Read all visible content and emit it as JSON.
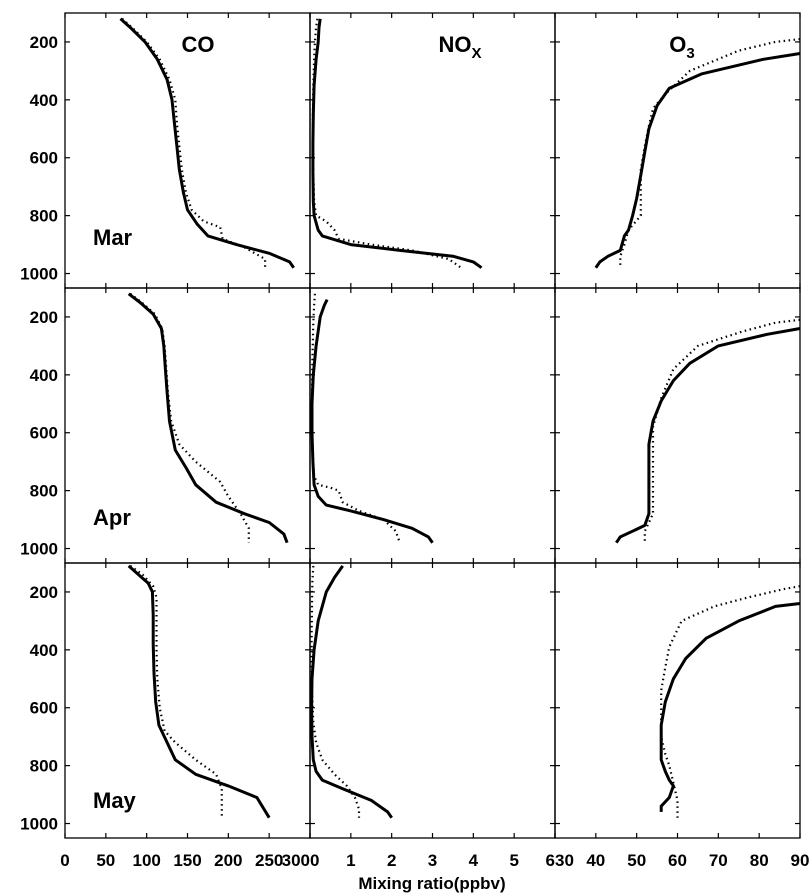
{
  "figure": {
    "xlabel": "Mixing ratio(ppbv)"
  },
  "chart_data": [
    {
      "type": "line",
      "column": "CO",
      "month": "Mar",
      "xlim": [
        0,
        300
      ],
      "ylim": [
        1050,
        100
      ],
      "series": [
        {
          "style": "solid",
          "x": [
            68,
            80,
            98,
            113,
            125,
            131,
            134,
            137,
            140,
            145,
            150,
            162,
            175,
            210,
            250,
            275,
            280
          ],
          "y": [
            120,
            150,
            200,
            260,
            330,
            400,
            480,
            560,
            640,
            720,
            780,
            830,
            870,
            900,
            930,
            960,
            980
          ]
        },
        {
          "style": "dotted",
          "x": [
            70,
            82,
            100,
            116,
            128,
            135,
            137,
            140,
            143,
            148,
            155,
            170,
            190,
            193,
            220,
            245,
            245
          ],
          "y": [
            120,
            150,
            200,
            260,
            330,
            400,
            480,
            560,
            640,
            720,
            780,
            820,
            840,
            880,
            910,
            950,
            980
          ]
        }
      ]
    },
    {
      "type": "line",
      "column": "NOx",
      "month": "Mar",
      "xlim": [
        0,
        6
      ],
      "ylim": [
        1050,
        100
      ],
      "series": [
        {
          "style": "solid",
          "x": [
            0.25,
            0.22,
            0.2,
            0.15,
            0.1,
            0.08,
            0.07,
            0.07,
            0.08,
            0.1,
            0.2,
            0.3,
            1.0,
            2.2,
            3.5,
            4.0,
            4.2
          ],
          "y": [
            120,
            150,
            200,
            260,
            350,
            450,
            550,
            650,
            750,
            800,
            850,
            870,
            900,
            920,
            940,
            960,
            980
          ]
        },
        {
          "style": "dotted",
          "x": [
            0.18,
            0.15,
            0.12,
            0.1,
            0.08,
            0.07,
            0.07,
            0.08,
            0.1,
            0.15,
            0.4,
            0.6,
            0.7,
            1.5,
            2.5,
            3.4,
            3.7
          ],
          "y": [
            120,
            150,
            200,
            260,
            350,
            450,
            550,
            650,
            750,
            800,
            820,
            850,
            880,
            900,
            920,
            950,
            980
          ]
        }
      ]
    },
    {
      "type": "line",
      "column": "O3",
      "month": "Mar",
      "xlim": [
        30,
        90
      ],
      "ylim": [
        1050,
        100
      ],
      "series": [
        {
          "style": "solid",
          "x": [
            90,
            81,
            66,
            58,
            55,
            53,
            52,
            51,
            50,
            49,
            48,
            47,
            46,
            43,
            41,
            40
          ],
          "y": [
            240,
            260,
            310,
            360,
            420,
            500,
            580,
            660,
            740,
            800,
            850,
            870,
            920,
            940,
            960,
            980
          ]
        },
        {
          "style": "dotted",
          "x": [
            90,
            84,
            75,
            63,
            57,
            54,
            53,
            52,
            51,
            51,
            51,
            48,
            47,
            46,
            46
          ],
          "y": [
            190,
            200,
            230,
            300,
            380,
            430,
            490,
            560,
            640,
            740,
            800,
            850,
            900,
            940,
            980
          ]
        }
      ]
    },
    {
      "type": "line",
      "column": "CO",
      "month": "Apr",
      "xlim": [
        0,
        300
      ],
      "ylim": [
        1050,
        100
      ],
      "series": [
        {
          "style": "solid",
          "x": [
            78,
            92,
            108,
            118,
            121,
            123,
            125,
            128,
            135,
            148,
            160,
            185,
            220,
            250,
            268,
            272
          ],
          "y": [
            120,
            150,
            190,
            240,
            300,
            380,
            460,
            560,
            660,
            720,
            780,
            840,
            880,
            910,
            950,
            980
          ]
        },
        {
          "style": "dotted",
          "x": [
            80,
            94,
            110,
            119,
            122,
            124,
            126,
            130,
            140,
            160,
            190,
            200,
            215,
            225,
            225
          ],
          "y": [
            120,
            150,
            190,
            240,
            300,
            380,
            460,
            560,
            640,
            700,
            770,
            820,
            880,
            930,
            980
          ]
        }
      ]
    },
    {
      "type": "line",
      "column": "NOx",
      "month": "Apr",
      "xlim": [
        0,
        6
      ],
      "ylim": [
        1050,
        100
      ],
      "series": [
        {
          "style": "solid",
          "x": [
            0.42,
            0.35,
            0.25,
            0.15,
            0.08,
            0.05,
            0.05,
            0.07,
            0.1,
            0.2,
            0.4,
            1.0,
            1.8,
            2.5,
            2.9,
            3.0
          ],
          "y": [
            140,
            160,
            200,
            300,
            400,
            500,
            600,
            700,
            780,
            820,
            850,
            870,
            900,
            930,
            960,
            980
          ]
        },
        {
          "style": "dotted",
          "x": [
            0.12,
            0.1,
            0.08,
            0.06,
            0.05,
            0.05,
            0.06,
            0.1,
            0.2,
            0.5,
            0.7,
            0.8,
            1.2,
            1.8,
            2.1,
            2.2
          ],
          "y": [
            120,
            160,
            220,
            350,
            450,
            550,
            650,
            750,
            780,
            790,
            800,
            840,
            870,
            900,
            940,
            980
          ]
        }
      ]
    },
    {
      "type": "line",
      "column": "O3",
      "month": "Apr",
      "xlim": [
        30,
        90
      ],
      "ylim": [
        1050,
        100
      ],
      "series": [
        {
          "style": "solid",
          "x": [
            90,
            82,
            70,
            63,
            59,
            56,
            54,
            53,
            53,
            53,
            53,
            53,
            52,
            49,
            46,
            45
          ],
          "y": [
            240,
            260,
            300,
            360,
            420,
            490,
            560,
            640,
            720,
            800,
            850,
            880,
            920,
            940,
            960,
            980
          ]
        },
        {
          "style": "dotted",
          "x": [
            90,
            84,
            76,
            65,
            59,
            56,
            54,
            54,
            54,
            54,
            54,
            53,
            52,
            52,
            52
          ],
          "y": [
            210,
            220,
            250,
            300,
            380,
            480,
            580,
            680,
            760,
            820,
            880,
            910,
            940,
            960,
            980
          ]
        }
      ]
    },
    {
      "type": "line",
      "column": "CO",
      "month": "May",
      "xlim": [
        0,
        300
      ],
      "ylim": [
        1050,
        100
      ],
      "series": [
        {
          "style": "solid",
          "x": [
            78,
            90,
            102,
            107,
            108,
            108,
            109,
            111,
            115,
            125,
            135,
            160,
            200,
            235,
            250
          ],
          "y": [
            110,
            140,
            170,
            200,
            280,
            380,
            480,
            580,
            660,
            720,
            780,
            830,
            870,
            910,
            980
          ]
        },
        {
          "style": "dotted",
          "x": [
            80,
            95,
            108,
            112,
            112,
            112,
            113,
            116,
            122,
            135,
            160,
            185,
            192,
            192
          ],
          "y": [
            110,
            140,
            180,
            220,
            300,
            400,
            500,
            600,
            680,
            720,
            780,
            830,
            880,
            980
          ]
        }
      ]
    },
    {
      "type": "line",
      "column": "NOx",
      "month": "May",
      "xlim": [
        0,
        6
      ],
      "ylim": [
        1050,
        100
      ],
      "series": [
        {
          "style": "solid",
          "x": [
            0.8,
            0.6,
            0.4,
            0.2,
            0.1,
            0.05,
            0.04,
            0.05,
            0.08,
            0.15,
            0.3,
            0.8,
            1.5,
            1.9,
            2.0
          ],
          "y": [
            110,
            150,
            200,
            300,
            400,
            500,
            600,
            700,
            780,
            820,
            850,
            880,
            920,
            960,
            980
          ]
        },
        {
          "style": "dotted",
          "x": [
            0.08,
            0.06,
            0.05,
            0.04,
            0.04,
            0.05,
            0.08,
            0.15,
            0.3,
            0.6,
            0.9,
            1.1,
            1.2,
            1.2
          ],
          "y": [
            110,
            160,
            250,
            350,
            450,
            550,
            650,
            720,
            780,
            830,
            870,
            910,
            950,
            980
          ]
        }
      ]
    },
    {
      "type": "line",
      "column": "O3",
      "month": "May",
      "xlim": [
        30,
        90
      ],
      "ylim": [
        1050,
        100
      ],
      "series": [
        {
          "style": "solid",
          "x": [
            90,
            84,
            75,
            67,
            62,
            59,
            57,
            56,
            56,
            56,
            57,
            58,
            59,
            58,
            56,
            56
          ],
          "y": [
            240,
            250,
            300,
            360,
            430,
            500,
            580,
            660,
            720,
            780,
            820,
            850,
            870,
            910,
            940,
            960
          ]
        },
        {
          "style": "dotted",
          "x": [
            90,
            86,
            77,
            69,
            61,
            58,
            57,
            56,
            56,
            56,
            57,
            58,
            59,
            60,
            60
          ],
          "y": [
            180,
            190,
            220,
            250,
            300,
            390,
            460,
            540,
            620,
            700,
            760,
            800,
            860,
            920,
            980
          ]
        }
      ]
    }
  ],
  "columns": [
    {
      "title_main": "CO",
      "title_sub": "",
      "xticks": [
        "0",
        "50",
        "100",
        "150",
        "200",
        "250",
        "300"
      ]
    },
    {
      "title_main": "NO",
      "title_sub": "X",
      "xticks": [
        "0",
        "1",
        "2",
        "3",
        "4",
        "5",
        "6"
      ]
    },
    {
      "title_main": "O",
      "title_sub": "3",
      "xticks": [
        "30",
        "40",
        "50",
        "60",
        "70",
        "80",
        "90"
      ]
    }
  ],
  "rows": [
    {
      "month": "Mar",
      "yticks": [
        "200",
        "400",
        "600",
        "800",
        "1000"
      ]
    },
    {
      "month": "Apr",
      "yticks": [
        "200",
        "400",
        "600",
        "800",
        "1000"
      ]
    },
    {
      "month": "May",
      "yticks": [
        "200",
        "400",
        "600",
        "800",
        "1000"
      ]
    }
  ]
}
